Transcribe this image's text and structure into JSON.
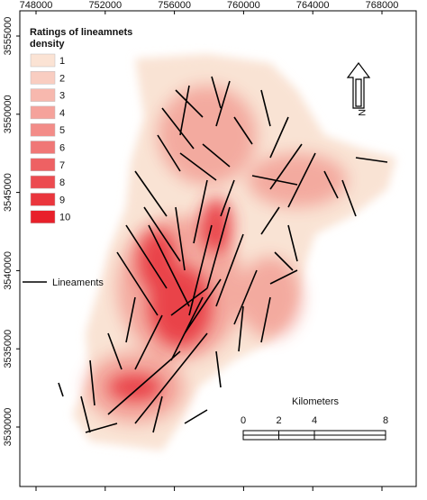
{
  "map": {
    "x_ticks": [
      748000,
      752000,
      756000,
      760000,
      764000,
      768000
    ],
    "y_ticks": [
      3555000,
      3550000,
      3545000,
      3540000,
      3535000,
      3530000
    ],
    "legend": {
      "title": "Ratings of lineamnets density",
      "items": [
        "1",
        "2",
        "3",
        "4",
        "5",
        "6",
        "7",
        "8",
        "9",
        "10"
      ],
      "lineaments": "Lineaments"
    },
    "scale_bar": {
      "title": "Kilometers",
      "ticks": [
        0,
        2,
        4,
        8
      ]
    },
    "north_arrow": "N"
  }
}
